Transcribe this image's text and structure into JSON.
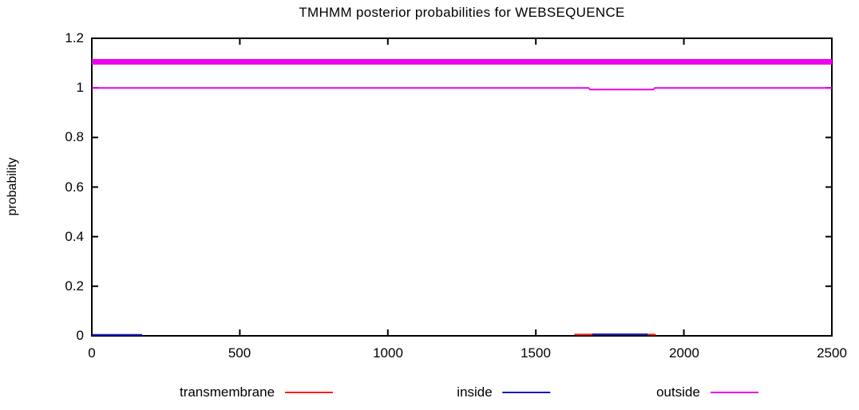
{
  "page": {
    "background": "#ffffff",
    "axis_color": "#000000"
  },
  "chart_data": {
    "type": "line",
    "title": "TMHMM posterior probabilities for WEBSEQUENCE",
    "xlabel": "",
    "ylabel": "probability",
    "xlim": [
      0,
      2500
    ],
    "ylim": [
      0,
      1.2
    ],
    "xtick_labels": [
      "0",
      "500",
      "1000",
      "1500",
      "2000",
      "2500"
    ],
    "ytick_labels": [
      "0",
      "0.2",
      "0.4",
      "0.6",
      "0.8",
      "1",
      "1.2"
    ],
    "grid": false,
    "legend_position": "bottom",
    "series": [
      {
        "name": "transmembrane",
        "color": "#ff1a1a",
        "width": 2,
        "segments": [
          [
            [
              1630,
              0.005
            ],
            [
              1692,
              0.005
            ]
          ],
          [
            [
              1876,
              0.005
            ],
            [
              1905,
              0.005
            ]
          ]
        ]
      },
      {
        "name": "inside",
        "color": "#1515c8",
        "width": 2,
        "segments": [
          [
            [
              0,
              0.004
            ],
            [
              170,
              0.004
            ]
          ],
          [
            [
              1690,
              0.006
            ],
            [
              1878,
              0.006
            ]
          ]
        ]
      },
      {
        "name": "outside",
        "color": "#ee00ee",
        "width": 2,
        "segments": [
          [
            [
              0,
              1.0
            ],
            [
              1678,
              1.0
            ],
            [
              1683,
              0.993
            ],
            [
              1897,
              0.993
            ],
            [
              1902,
              1.0
            ],
            [
              2500,
              1.0
            ]
          ]
        ]
      }
    ],
    "topology_bar": {
      "region": "outside",
      "color": "#ee00ee",
      "y": 1.105,
      "x_range": [
        0,
        2500
      ],
      "thickness_px": 7
    }
  }
}
